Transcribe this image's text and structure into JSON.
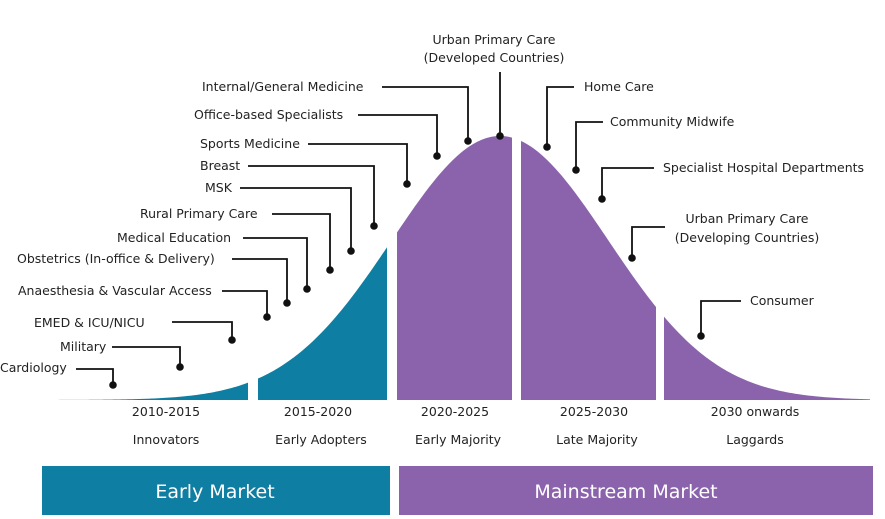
{
  "colors": {
    "early": "#0F7EA3",
    "mainstream": "#8B63AC",
    "text": "#222222"
  },
  "segments": [
    {
      "years": "2010-2015",
      "stage": "Innovators"
    },
    {
      "years": "2015-2020",
      "stage": "Early Adopters"
    },
    {
      "years": "2020-2025",
      "stage": "Early Majority"
    },
    {
      "years": "2025-2030",
      "stage": "Late Majority"
    },
    {
      "years": "2030 onwards",
      "stage": "Laggards"
    }
  ],
  "markets": {
    "early": "Early Market",
    "mainstream": "Mainstream Market"
  },
  "labels": {
    "cardiology": "Cardiology",
    "military": "Military",
    "emed": "EMED & ICU/NICU",
    "anaesthesia": "Anaesthesia & Vascular Access",
    "obstetrics": "Obstetrics (In-office & Delivery)",
    "medical_education": "Medical Education",
    "rural_primary_care": "Rural Primary Care",
    "msk": "MSK",
    "breast": "Breast",
    "sports_medicine": "Sports Medicine",
    "office_specialists": "Office-based Specialists",
    "internal_medicine": "Internal/General Medicine",
    "urban_developed_line1": "Urban Primary Care",
    "urban_developed_line2": "(Developed Countries)",
    "home_care": "Home Care",
    "community_midwife": "Community Midwife",
    "specialist_hospital": "Specialist Hospital Departments",
    "urban_developing_line1": "Urban Primary Care",
    "urban_developing_line2": "(Developing Countries)",
    "consumer": "Consumer"
  }
}
